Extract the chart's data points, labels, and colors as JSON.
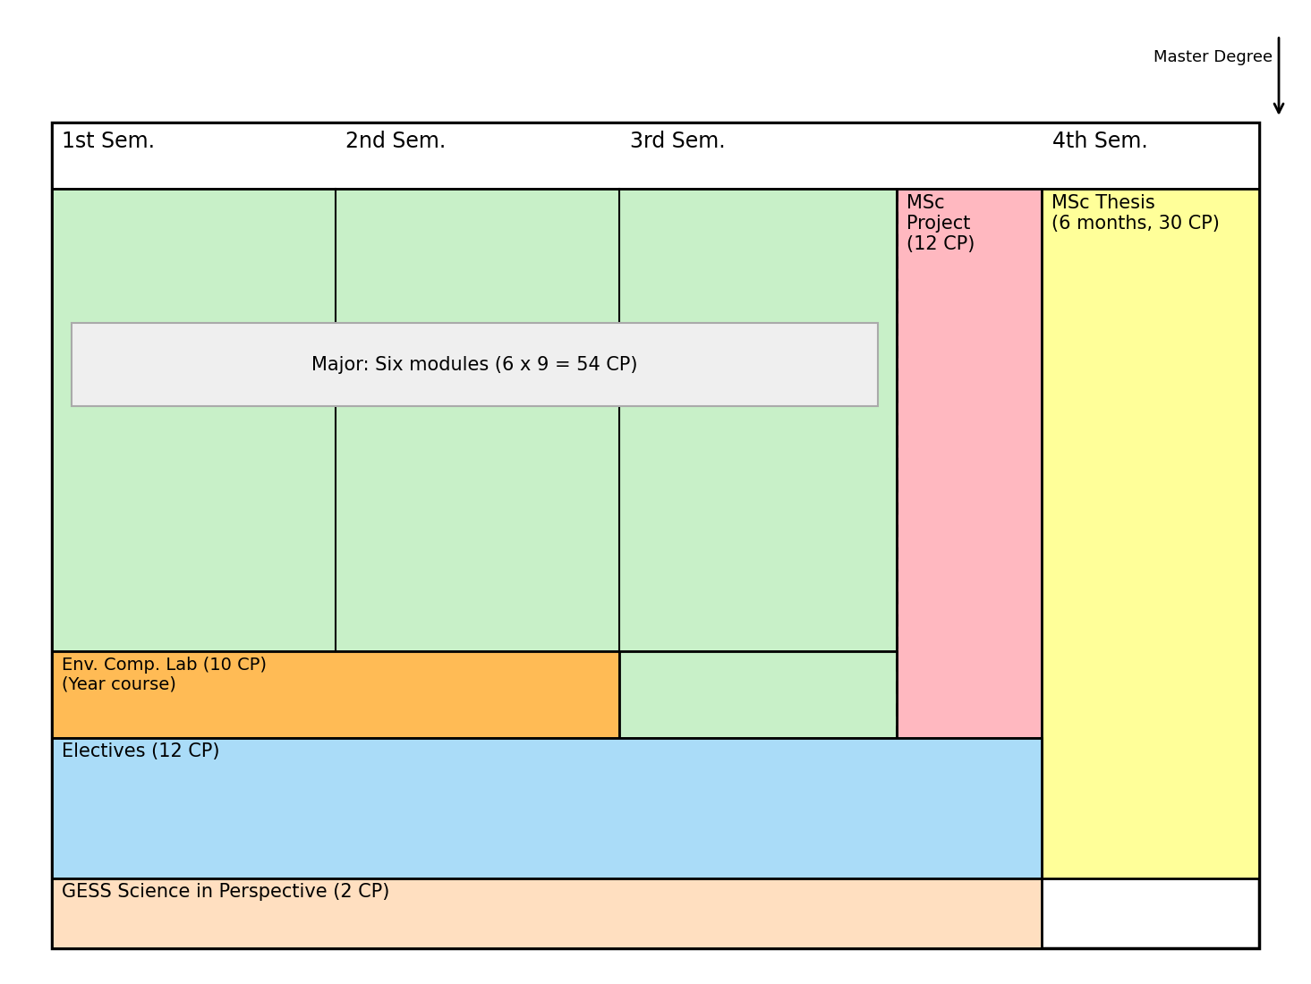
{
  "background_color": "#ffffff",
  "arrow_label": "Master Degree",
  "semester_headers": [
    "1st Sem.",
    "2nd Sem.",
    "3rd Sem.",
    "4th Sem."
  ],
  "colors": {
    "green": "#c8f0c8",
    "pink": "#ffb8c0",
    "yellow": "#ffff99",
    "orange": "#ffbb55",
    "blue": "#aadcf8",
    "peach": "#ffdfc0",
    "white": "#ffffff",
    "light_gray": "#e8e8e8"
  },
  "major_box_label": "Major: Six modules (6 x 9 = 54 CP)",
  "msc_project_label": "MSc\nProject\n(12 CP)",
  "msc_thesis_label": "MSc Thesis\n(6 months, 30 CP)",
  "env_lab_label": "Env. Comp. Lab (10 CP)\n(Year course)",
  "electives_label": "Electives (12 CP)",
  "gess_label": "GESS Science in Perspective (2 CP)"
}
